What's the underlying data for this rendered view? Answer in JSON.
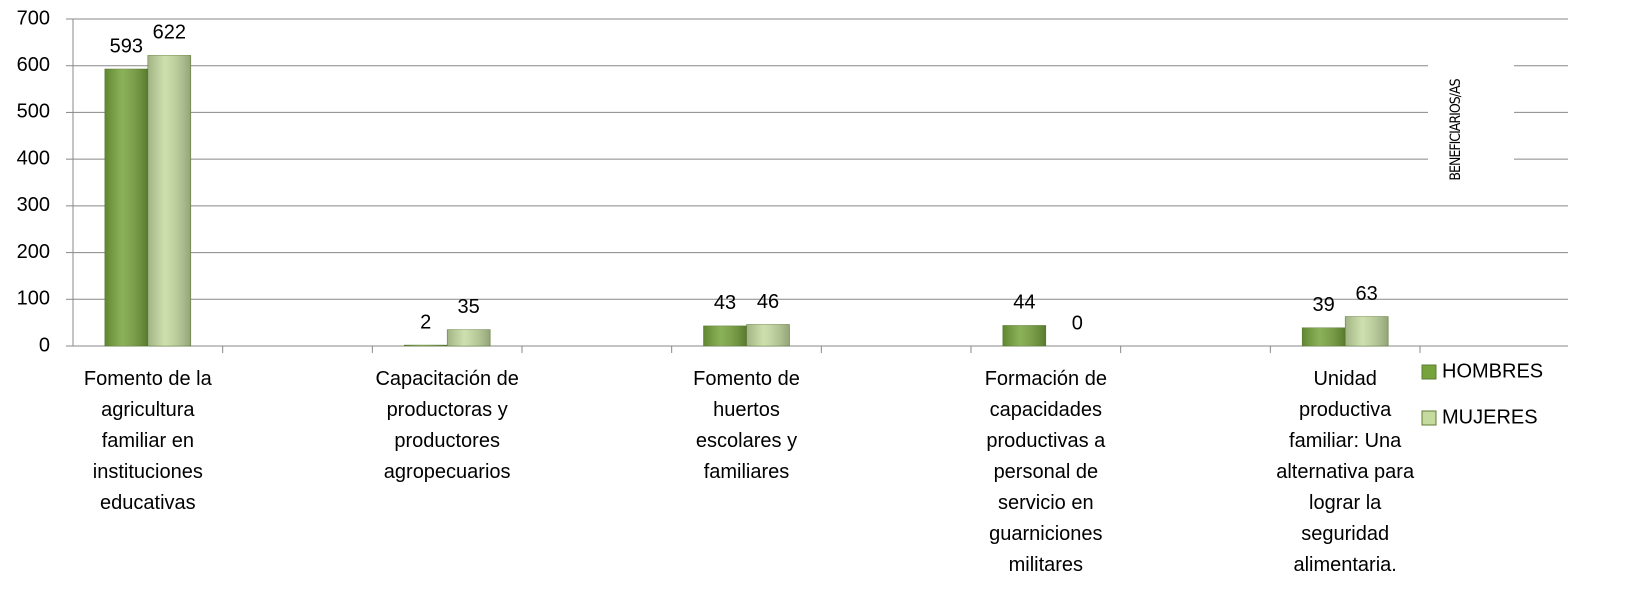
{
  "chart_data": {
    "type": "bar",
    "y_label": "BENEFICIARIOS/AS",
    "categories": [
      "Fomento de la agricultura familiar en instituciones educativas",
      null,
      "Capacitación de productoras y productores agropecuarios",
      null,
      "Fomento de huertos escolares y familiares",
      null,
      "Formación de capacidades productivas a personal de servicio en guarniciones militares",
      null,
      "Unidad productiva familiar: Una alternativa para lograr la seguridad alimentaria."
    ],
    "series": [
      {
        "name": "HOMBRES",
        "color": "#76a33b",
        "values": [
          593,
          null,
          2,
          null,
          43,
          null,
          44,
          null,
          39
        ]
      },
      {
        "name": "MUJERES",
        "color": "#c4da9f",
        "values": [
          622,
          null,
          35,
          null,
          46,
          null,
          0,
          null,
          63
        ]
      }
    ],
    "ylim": [
      0,
      700
    ],
    "yticks": [
      0,
      100,
      200,
      300,
      400,
      500,
      600,
      700
    ],
    "grid": true
  }
}
